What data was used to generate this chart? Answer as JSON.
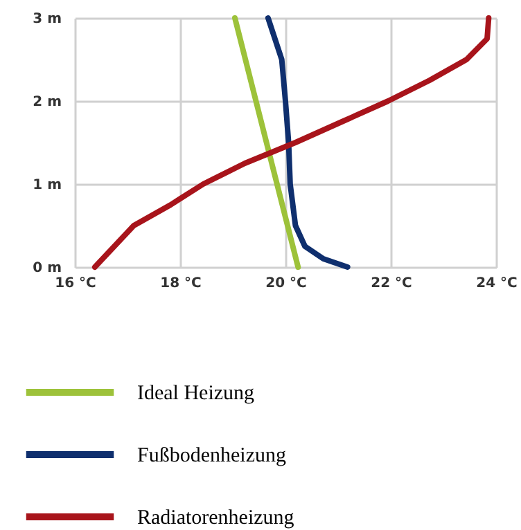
{
  "chart_data": {
    "type": "line",
    "legend": "bottom",
    "grid": true,
    "xlim": [
      16,
      24
    ],
    "xticks": [
      {
        "value": 16,
        "label": "16 °C"
      },
      {
        "value": 18,
        "label": "18 °C"
      },
      {
        "value": 20,
        "label": "20 °C"
      },
      {
        "value": 22,
        "label": "22 °C"
      },
      {
        "value": 24,
        "label": "24 °C"
      }
    ],
    "ylim": [
      0,
      3
    ],
    "yticks": [
      {
        "value": 0,
        "label": "0 m"
      },
      {
        "value": 1,
        "label": "1 m"
      },
      {
        "value": 2,
        "label": "2 m"
      },
      {
        "value": 3,
        "label": "3 m"
      }
    ],
    "series": [
      {
        "name": "Ideal Heizung",
        "color": "#9dc23a",
        "x": [
          19.04,
          20.24
        ],
        "values": [
          3,
          0
        ]
      },
      {
        "name": "Fußbodenheizung",
        "color": "#0f2f6e",
        "x": [
          19.67,
          19.93,
          20.0,
          20.06,
          20.09,
          20.19,
          20.37,
          20.72,
          21.18
        ],
        "values": [
          3,
          2.5,
          2,
          1.5,
          1,
          0.5,
          0.25,
          0.1,
          0
        ]
      },
      {
        "name": "Radiatorenheizung",
        "color": "#a8141b",
        "x": [
          16.38,
          17.12,
          17.82,
          18.44,
          19.23,
          20.19,
          21.07,
          21.95,
          22.74,
          23.44,
          23.83,
          23.86
        ],
        "values": [
          0,
          0.5,
          0.75,
          1,
          1.25,
          1.5,
          1.75,
          2,
          2.25,
          2.5,
          2.75,
          3
        ]
      }
    ]
  }
}
